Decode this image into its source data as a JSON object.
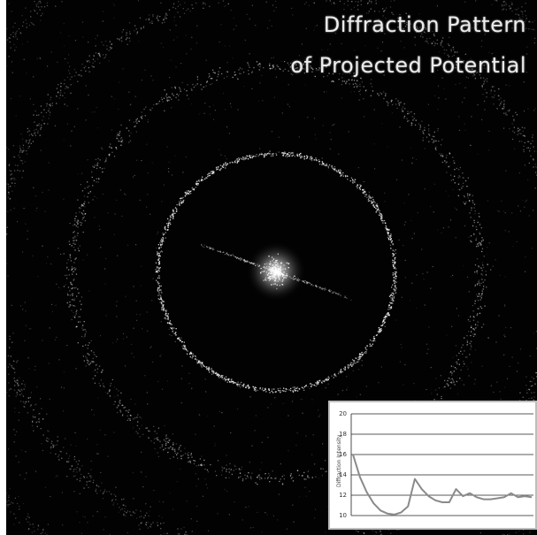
{
  "title": {
    "line1": "Diffraction Pattern",
    "line2": "of Projected Potential"
  },
  "colors": {
    "background": "#020202",
    "pattern": "#ffffff",
    "title_text": "#ececec",
    "inset_background": "#ffffff",
    "inset_curve": "#8a8a8a"
  },
  "pattern": {
    "rings": [
      {
        "radius_px": 134,
        "brightness": 0.95
      },
      {
        "radius_px": 232,
        "brightness": 0.6
      },
      {
        "radius_px": 318,
        "brightness": 0.45
      },
      {
        "radius_px": 400,
        "brightness": 0.35
      }
    ]
  },
  "inset_chart": {
    "ylabel": "Diffraction Intensity",
    "ylim": [
      10,
      20
    ],
    "yticks": [
      "20",
      "18",
      "16",
      "14",
      "12",
      "10"
    ],
    "grid": true,
    "curve_y": [
      16,
      13.8,
      12.3,
      11.2,
      10.5,
      10.2,
      10.1,
      10.3,
      10.9,
      13.6,
      12.6,
      11.9,
      11.5,
      11.3,
      11.3,
      12.6,
      11.9,
      12.2,
      11.8,
      11.6,
      11.6,
      11.7,
      11.8,
      12.2,
      11.8,
      11.9,
      11.8
    ]
  }
}
